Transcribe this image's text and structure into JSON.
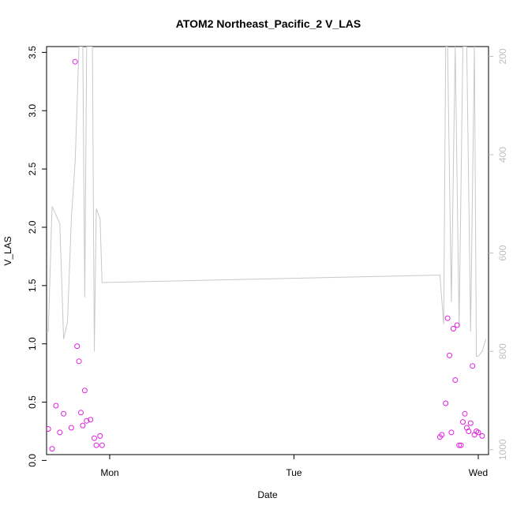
{
  "chart_data": {
    "type": "scatter",
    "title": "ATOM2 Northeast_Pacific_2 V_LAS",
    "xlabel": "Date",
    "ylabel": "V_LAS",
    "x_ticks": [
      "Mon",
      "Tue",
      "Wed"
    ],
    "ylim": [
      0.05,
      3.55
    ],
    "y_ticks": [
      "0.0",
      "0.5",
      "1.0",
      "1.5",
      "2.0",
      "2.5",
      "3.0",
      "3.5"
    ],
    "y2_ticks": [
      "200",
      "400",
      "600",
      "800",
      "1000"
    ],
    "y2lim": [
      1010,
      180
    ],
    "y2_reversed": true,
    "colors": {
      "points": "#e020e0",
      "line": "#c8c8c8",
      "right_axis": "#bebebe"
    },
    "series": [
      {
        "points": [
          {
            "x": "Sun 15:00",
            "y": 0.18
          },
          {
            "x": "Sun 15:30",
            "y": 0.26
          },
          {
            "x": "Sun 16:00",
            "y": 0.27
          },
          {
            "x": "Sun 16:30",
            "y": 0.1
          },
          {
            "x": "Sun 17:00",
            "y": 0.47
          },
          {
            "x": "Sun 17:30",
            "y": 0.24
          },
          {
            "x": "Sun 18:00",
            "y": 0.4
          },
          {
            "x": "Sun 19:00",
            "y": 0.28
          },
          {
            "x": "Sun 19:30",
            "y": 3.42
          },
          {
            "x": "Sun 19:45",
            "y": 0.98
          },
          {
            "x": "Sun 20:00",
            "y": 0.85
          },
          {
            "x": "Sun 20:15",
            "y": 0.41
          },
          {
            "x": "Sun 20:30",
            "y": 0.3
          },
          {
            "x": "Sun 20:45",
            "y": 0.6
          },
          {
            "x": "Sun 21:00",
            "y": 0.34
          },
          {
            "x": "Sun 21:30",
            "y": 0.35
          },
          {
            "x": "Sun 22:00",
            "y": 0.19
          },
          {
            "x": "Sun 22:15",
            "y": 0.13
          },
          {
            "x": "Sun 22:45",
            "y": 0.21
          },
          {
            "x": "Sun 23:00",
            "y": 0.13
          },
          {
            "x": "Tue 19:00",
            "y": 0.2
          },
          {
            "x": "Tue 19:15",
            "y": 0.22
          },
          {
            "x": "Tue 19:45",
            "y": 0.49
          },
          {
            "x": "Tue 20:00",
            "y": 1.22
          },
          {
            "x": "Tue 20:15",
            "y": 0.9
          },
          {
            "x": "Tue 20:30",
            "y": 0.24
          },
          {
            "x": "Tue 20:45",
            "y": 1.13
          },
          {
            "x": "Tue 21:00",
            "y": 0.69
          },
          {
            "x": "Tue 21:15",
            "y": 1.16
          },
          {
            "x": "Tue 21:30",
            "y": 0.13
          },
          {
            "x": "Tue 21:45",
            "y": 0.13
          },
          {
            "x": "Tue 22:00",
            "y": 0.33
          },
          {
            "x": "Tue 22:15",
            "y": 0.4
          },
          {
            "x": "Tue 22:30",
            "y": 0.28
          },
          {
            "x": "Tue 22:45",
            "y": 0.25
          },
          {
            "x": "Tue 23:00",
            "y": 0.32
          },
          {
            "x": "Tue 23:15",
            "y": 0.81
          },
          {
            "x": "Tue 23:30",
            "y": 0.22
          },
          {
            "x": "Tue 23:45",
            "y": 0.25
          },
          {
            "x": "Wed 00:00",
            "y": 0.24
          },
          {
            "x": "Wed 00:30",
            "y": 0.21
          }
        ]
      },
      {
        "axis": "right",
        "points": [
          {
            "x": "Sun 15:00",
            "y": 535
          },
          {
            "x": "Sun 15:30",
            "y": 760
          },
          {
            "x": "Sun 16:00",
            "y": 760
          },
          {
            "x": "Sun 16:30",
            "y": 505
          },
          {
            "x": "Sun 17:30",
            "y": 540
          },
          {
            "x": "Sun 18:00",
            "y": 775
          },
          {
            "x": "Sun 18:30",
            "y": 740
          },
          {
            "x": "Sun 19:00",
            "y": 530
          },
          {
            "x": "Sun 19:30",
            "y": 415
          },
          {
            "x": "Sun 20:00",
            "y": 180
          },
          {
            "x": "Sun 20:30",
            "y": 180
          },
          {
            "x": "Sun 20:45",
            "y": 690
          },
          {
            "x": "Sun 21:00",
            "y": 180
          },
          {
            "x": "Sun 21:45",
            "y": 180
          },
          {
            "x": "Sun 22:00",
            "y": 800
          },
          {
            "x": "Sun 22:15",
            "y": 510
          },
          {
            "x": "Sun 22:45",
            "y": 530
          },
          {
            "x": "Sun 23:00",
            "y": 660
          },
          {
            "x": "Tue 18:30",
            "y": 645
          },
          {
            "x": "Tue 19:00",
            "y": 645
          },
          {
            "x": "Tue 19:30",
            "y": 745
          },
          {
            "x": "Tue 19:45",
            "y": 180
          },
          {
            "x": "Tue 20:00",
            "y": 180
          },
          {
            "x": "Tue 20:30",
            "y": 700
          },
          {
            "x": "Tue 21:00",
            "y": 180
          },
          {
            "x": "Tue 21:30",
            "y": 750
          },
          {
            "x": "Tue 22:00",
            "y": 180
          },
          {
            "x": "Tue 22:30",
            "y": 180
          },
          {
            "x": "Tue 23:00",
            "y": 760
          },
          {
            "x": "Tue 23:30",
            "y": 180
          },
          {
            "x": "Tue 23:45",
            "y": 810
          },
          {
            "x": "Wed 00:00",
            "y": 810
          },
          {
            "x": "Wed 00:30",
            "y": 800
          },
          {
            "x": "Wed 01:00",
            "y": 775
          }
        ]
      }
    ]
  }
}
